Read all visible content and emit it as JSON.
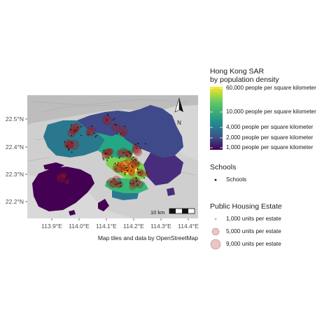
{
  "map": {
    "lat_labels": [
      "22.5°N",
      "22.4°N",
      "22.3°N",
      "22.2°N"
    ],
    "lon_labels": [
      "113.9°E",
      "114.0°E",
      "114.1°E",
      "114.2°E",
      "114.3°E",
      "114.4°E"
    ],
    "attribution": "Map tiles and data by OpenStreetMap",
    "scale_bar_label": "10 km",
    "north_arrow_label": "N"
  },
  "legend_density": {
    "title_line1": "Hong Kong SAR",
    "title_line2": "by population density",
    "labels": [
      "60,000 people per square kilometer",
      "10,000 people per square kilometer",
      "4,000 people per square kilometer",
      "2,000 people per square kilometer",
      "1,000 people per square kilometer"
    ],
    "colors": [
      "#fde725",
      "#5ec962",
      "#21918c",
      "#3b528b",
      "#440154"
    ]
  },
  "legend_schools": {
    "title": "Schools",
    "label": "Schools",
    "icon": "school-point-icon"
  },
  "legend_estates": {
    "title": "Public Housing Estate",
    "labels": [
      "1,000 units per estate",
      "5,000 units per estate",
      "9,000 units per estate"
    ],
    "color": "#a31a1a"
  }
}
